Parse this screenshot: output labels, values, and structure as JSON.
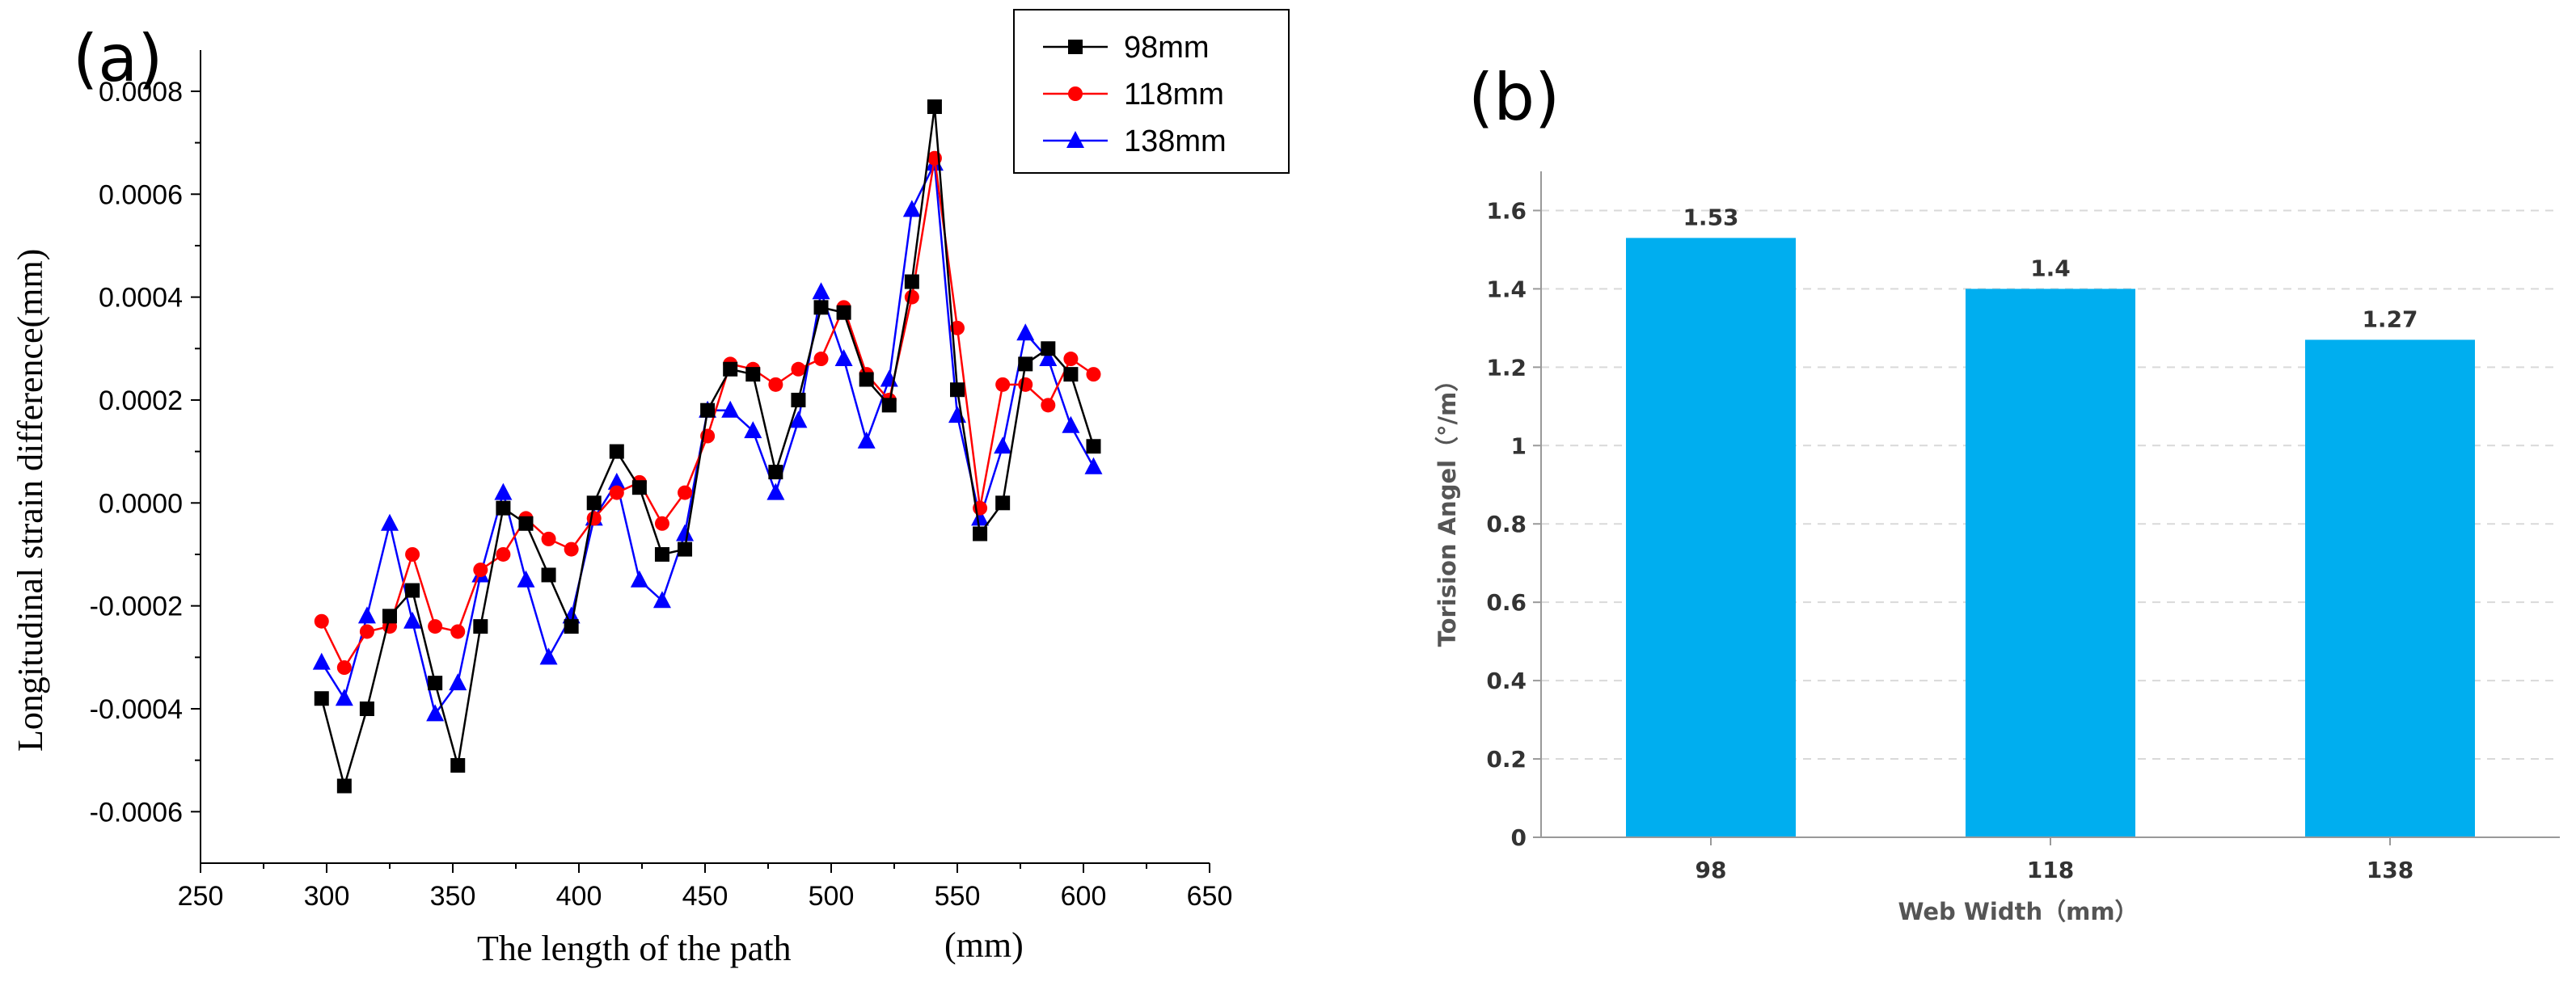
{
  "chart_data": [
    {
      "type": "line",
      "panel_label": "(a)",
      "title": "",
      "xlabel": "The length of the path",
      "xlabel_unit": "(mm)",
      "ylabel": "Longitudinal strain difference(mm)",
      "xlim": [
        250,
        650
      ],
      "ylim": [
        -0.0007,
        0.00088
      ],
      "xticks": [
        250,
        300,
        350,
        400,
        450,
        500,
        550,
        600,
        650
      ],
      "yticks": [
        -0.0006,
        -0.0004,
        -0.0002,
        0.0,
        0.0002,
        0.0004,
        0.0006,
        0.0008
      ],
      "ytick_labels": [
        "-0.0006",
        "-0.0004",
        "-0.0002",
        "0.0000",
        "0.0002",
        "0.0004",
        "0.0006",
        "0.0008"
      ],
      "grid": false,
      "legend_position": "top-right",
      "x": [
        298,
        307,
        316,
        325,
        334,
        343,
        352,
        361,
        370,
        379,
        388,
        397,
        406,
        415,
        424,
        433,
        442,
        451,
        460,
        469,
        478,
        487,
        496,
        505,
        514,
        523,
        532,
        541,
        550,
        559,
        568,
        577,
        586,
        595,
        604
      ],
      "series": [
        {
          "name": "98mm",
          "color": "#000000",
          "marker": "square",
          "values": [
            -0.00038,
            -0.00055,
            -0.0004,
            -0.00022,
            -0.00017,
            -0.00035,
            -0.00051,
            -0.00024,
            -1e-05,
            -4e-05,
            -0.00014,
            -0.00024,
            0.0,
            0.0001,
            3e-05,
            -0.0001,
            -9e-05,
            0.00018,
            0.00026,
            0.00025,
            6e-05,
            0.0002,
            0.00038,
            0.00037,
            0.00024,
            0.00019,
            0.00043,
            0.00077,
            0.00022,
            -6e-05,
            0.0,
            0.00027,
            0.0003,
            0.00025,
            0.00011
          ]
        },
        {
          "name": "118mm",
          "color": "#ff0000",
          "marker": "circle",
          "values": [
            -0.00023,
            -0.00032,
            -0.00025,
            -0.00024,
            -0.0001,
            -0.00024,
            -0.00025,
            -0.00013,
            -0.0001,
            -3e-05,
            -7e-05,
            -9e-05,
            -3e-05,
            2e-05,
            4e-05,
            -4e-05,
            2e-05,
            0.00013,
            0.00027,
            0.00026,
            0.00023,
            0.00026,
            0.00028,
            0.00038,
            0.00025,
            0.0002,
            0.0004,
            0.00067,
            0.00034,
            -1e-05,
            0.00023,
            0.00023,
            0.00019,
            0.00028,
            0.00025
          ]
        },
        {
          "name": "138mm",
          "color": "#0000ff",
          "marker": "triangle",
          "values": [
            -0.00031,
            -0.00038,
            -0.00022,
            -4e-05,
            -0.00023,
            -0.00041,
            -0.00035,
            -0.00014,
            2e-05,
            -0.00015,
            -0.0003,
            -0.00022,
            -3e-05,
            4e-05,
            -0.00015,
            -0.00019,
            -6e-05,
            0.00018,
            0.00018,
            0.00014,
            2e-05,
            0.00016,
            0.00041,
            0.00028,
            0.00012,
            0.00024,
            0.00057,
            0.00066,
            0.00017,
            -3e-05,
            0.00011,
            0.00033,
            0.00028,
            0.00015,
            7e-05
          ]
        }
      ]
    },
    {
      "type": "bar",
      "panel_label": "(b)",
      "title": "",
      "xlabel": "Web Width（mm）",
      "ylabel": "Torision Angel（°/m）",
      "categories": [
        "98",
        "118",
        "138"
      ],
      "values": [
        1.53,
        1.4,
        1.27
      ],
      "data_labels": [
        "1.53",
        "1.4",
        "1.27"
      ],
      "ylim": [
        0,
        1.7
      ],
      "yticks": [
        0,
        0.2,
        0.4,
        0.6,
        0.8,
        1,
        1.2,
        1.4,
        1.6
      ],
      "ytick_labels": [
        "0",
        "0.2",
        "0.4",
        "0.6",
        "0.8",
        "1",
        "1.2",
        "1.4",
        "1.6"
      ],
      "grid": true,
      "bar_color": "#00aeef"
    }
  ]
}
